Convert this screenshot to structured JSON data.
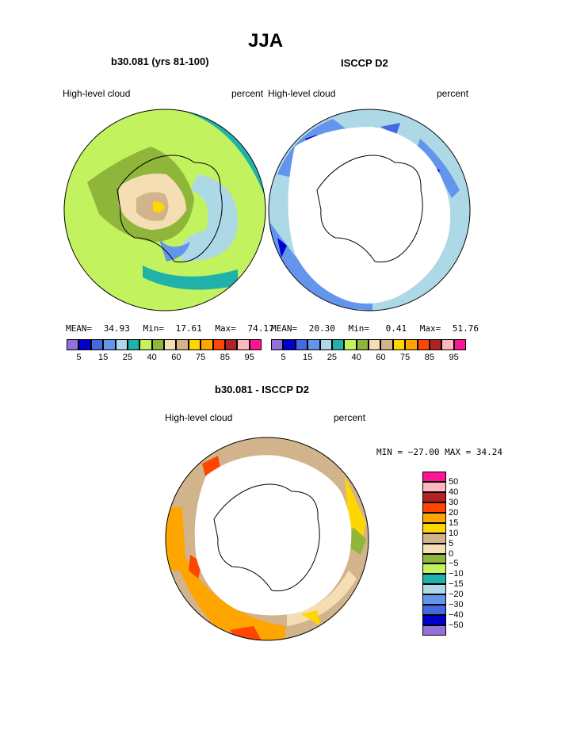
{
  "title": "JJA",
  "panels": [
    {
      "subtitle": "b30.081 (yrs 81-100)",
      "left_label": "High-level cloud",
      "right_label": "percent",
      "stats": {
        "mean_label": "MEAN=",
        "mean": "34.93",
        "min_label": "Min=",
        "min": "17.61",
        "max_label": "Max=",
        "max": "74.17"
      }
    },
    {
      "subtitle": "ISCCP D2",
      "left_label": "High-level cloud",
      "right_label": "percent",
      "stats": {
        "mean_label": "MEAN=",
        "mean": "20.30",
        "min_label": "Min=",
        "min": "0.41",
        "max_label": "Max=",
        "max": "51.76"
      }
    }
  ],
  "colorbar_top": {
    "colors": [
      "#9370DB",
      "#0000CD",
      "#4169E1",
      "#6495ED",
      "#ADD8E6",
      "#20B2AA",
      "#C3F25F",
      "#8FB63A",
      "#F5DEB3",
      "#D2B48C",
      "#FFD700",
      "#FFA500",
      "#FF4500",
      "#B22222",
      "#FFB6C1",
      "#FF1493"
    ],
    "tick_labels": [
      "5",
      "15",
      "25",
      "40",
      "60",
      "75",
      "85",
      "95"
    ]
  },
  "diff_panel": {
    "subtitle": "b30.081 - ISCCP D2",
    "left_label": "High-level cloud",
    "right_label": "percent",
    "minmax": "MIN = −27.00 MAX =  34.24"
  },
  "colorbar_diff": {
    "colors": [
      "#FF1493",
      "#FFB6C1",
      "#B22222",
      "#FF4500",
      "#FFA500",
      "#FFD700",
      "#D2B48C",
      "#F5DEB3",
      "#8FB63A",
      "#C3F25F",
      "#20B2AA",
      "#ADD8E6",
      "#6495ED",
      "#4169E1",
      "#0000CD",
      "#9370DB"
    ],
    "tick_labels": [
      "50",
      "40",
      "30",
      "20",
      "15",
      "10",
      "5",
      "0",
      "−5",
      "−10",
      "−15",
      "−20",
      "−30",
      "−40",
      "−50"
    ]
  }
}
